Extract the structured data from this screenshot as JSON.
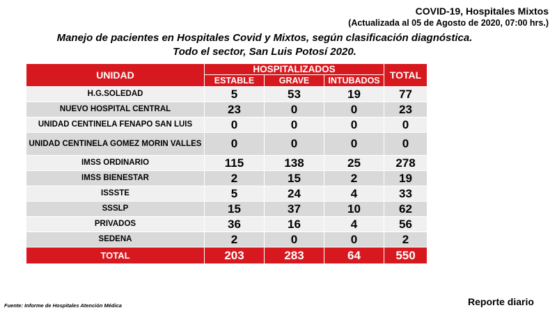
{
  "header": {
    "line1": "COVID-19, Hospitales Mixtos",
    "line2": "(Actualizada al 05 de Agosto de 2020, 07:00 hrs.)"
  },
  "subtitle": {
    "line1": "Manejo de pacientes en Hospitales Covid y Mixtos, según clasificación diagnóstica.",
    "line2": "Todo el sector, San Luis Potosí 2020."
  },
  "table": {
    "col_unidad": "UNIDAD",
    "col_group": "HOSPITALIZADOS",
    "col_estable": "ESTABLE",
    "col_grave": "GRAVE",
    "col_intubados": "INTUBADOS",
    "col_total": "TOTAL",
    "rows": [
      {
        "name": "H.G.SOLEDAD",
        "estable": "5",
        "grave": "53",
        "intubados": "19",
        "total": "77"
      },
      {
        "name": "NUEVO HOSPITAL CENTRAL",
        "estable": "23",
        "grave": "0",
        "intubados": "0",
        "total": "23"
      },
      {
        "name": "UNIDAD CENTINELA FENAPO SAN LUIS",
        "estable": "0",
        "grave": "0",
        "intubados": "0",
        "total": "0"
      },
      {
        "name": "UNIDAD CENTINELA GOMEZ MORIN VALLES",
        "estable": "0",
        "grave": "0",
        "intubados": "0",
        "total": "0"
      },
      {
        "name": "IMSS ORDINARIO",
        "estable": "115",
        "grave": "138",
        "intubados": "25",
        "total": "278"
      },
      {
        "name": "IMSS BIENESTAR",
        "estable": "2",
        "grave": "15",
        "intubados": "2",
        "total": "19"
      },
      {
        "name": "ISSSTE",
        "estable": "5",
        "grave": "24",
        "intubados": "4",
        "total": "33"
      },
      {
        "name": "SSSLP",
        "estable": "15",
        "grave": "37",
        "intubados": "10",
        "total": "62"
      },
      {
        "name": "PRIVADOS",
        "estable": "36",
        "grave": "16",
        "intubados": "4",
        "total": "56"
      },
      {
        "name": "SEDENA",
        "estable": "2",
        "grave": "0",
        "intubados": "0",
        "total": "2"
      }
    ],
    "totals": {
      "name": "TOTAL",
      "estable": "203",
      "grave": "283",
      "intubados": "64",
      "total": "550"
    }
  },
  "footer": {
    "source": "Fuente: Informe de Hospitales Atención Médica",
    "report": "Reporte diario"
  }
}
